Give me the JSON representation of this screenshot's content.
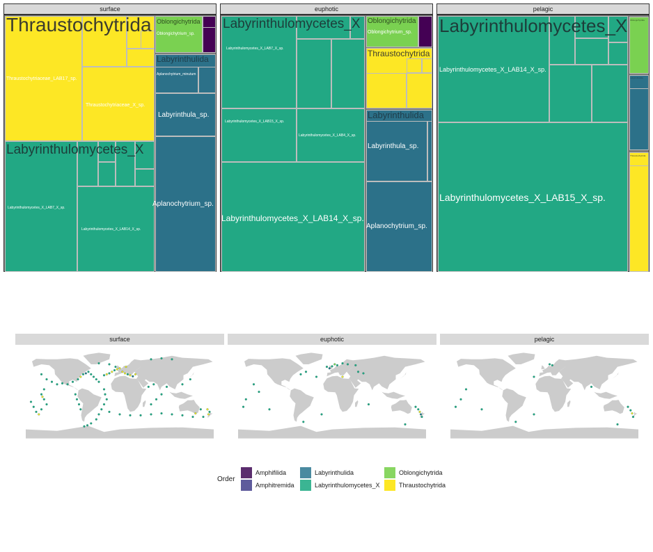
{
  "colors": {
    "Amphifilida": "#5b2d6e",
    "Amphitremida": "#5e5b9c",
    "Labyrinthulida": "#2c7189",
    "Labyrinthulomycetes_X": "#22a884",
    "Oblongichytrida": "#7ad151",
    "Thraustochytrida": "#fde725",
    "dark": "#440154",
    "land": "#cccccc"
  },
  "chart_data": [
    {
      "type": "treemap",
      "facets": [
        "surface",
        "euphotic",
        "pelagic"
      ],
      "groups": {
        "surface": [
          {
            "order": "Thraustochytrida",
            "label": "Thraustochytrida",
            "share": 0.37,
            "taxa": [
              {
                "label": "Thraustochytriaceae_LAB17_sp."
              },
              {
                "label": "Thraustochytriaceae_X_sp."
              }
            ]
          },
          {
            "order": "Labyrinthulomycetes_X",
            "label": "Labyrinthulomycetes_X",
            "share": 0.34,
            "taxa": [
              {
                "label": "Labyrinthulomycetes_X_LAB7_X_sp."
              },
              {
                "label": "Labyrinthulomycetes_X_LAB14_X_sp."
              }
            ]
          },
          {
            "order": "Oblongichytrida",
            "label": "Oblongichytrida",
            "share": 0.04,
            "taxa": [
              {
                "label": "Oblongichytrium_sp."
              }
            ]
          },
          {
            "order": "Labyrinthulida",
            "label": "Labyrinthulida",
            "share": 0.24,
            "taxa": [
              {
                "label": "Aplanochytrium_minutum"
              },
              {
                "label": "Labyrinthula_sp."
              },
              {
                "label": "Aplanochytrium_sp."
              }
            ]
          }
        ],
        "euphotic": [
          {
            "order": "Labyrinthulomycetes_X",
            "label": "Labyrinthulomycetes_X",
            "share": 0.64,
            "taxa": [
              {
                "label": "Labyrinthulomycetes_X_LAB7_X_sp."
              },
              {
                "label": "Labyrinthulomycetes_X_LAB15_X_sp."
              },
              {
                "label": "Labyrinthulomycetes_X_LAB4_X_sp."
              },
              {
                "label": "Labyrinthulomycetes_X_LAB14_X_sp."
              }
            ]
          },
          {
            "order": "Oblongichytrida",
            "label": "Oblongichytrida",
            "share": 0.05,
            "taxa": [
              {
                "label": "Oblongichytrium_sp."
              }
            ]
          },
          {
            "order": "Thraustochytrida",
            "label": "Thraustochytrida",
            "share": 0.1,
            "taxa": []
          },
          {
            "order": "Labyrinthulida",
            "label": "Labyrinthulida",
            "share": 0.21,
            "taxa": [
              {
                "label": "Labyrinthula_sp."
              },
              {
                "label": "Aplanochytrium_sp."
              }
            ]
          }
        ],
        "pelagic": [
          {
            "order": "Labyrinthulomycetes_X",
            "label": "Labyrinthulomycetes_X",
            "share": 0.9,
            "taxa": [
              {
                "label": "Labyrinthulomycetes_X_LAB14_X_sp."
              },
              {
                "label": "Labyrinthulomycetes_X_LAB15_X_sp."
              }
            ]
          },
          {
            "order": "Oblongichytrida",
            "label": "Oblongichytrida",
            "share": 0.02,
            "taxa": []
          },
          {
            "order": "Labyrinthulida",
            "label": "Labyrinthulida",
            "share": 0.03,
            "taxa": []
          },
          {
            "order": "Thraustochytrida",
            "label": "Thraustochytrida",
            "share": 0.05,
            "taxa": []
          }
        ]
      }
    },
    {
      "type": "scatter",
      "facets": [
        "surface",
        "euphotic",
        "pelagic"
      ],
      "xlim": [
        -180,
        180
      ],
      "ylim": [
        -90,
        90
      ],
      "points": {
        "surface": [
          [
            -150,
            40,
            "Labyrinthulomycetes_X"
          ],
          [
            -140,
            30,
            "Labyrinthulomycetes_X"
          ],
          [
            -130,
            25,
            "Labyrinthulomycetes_X"
          ],
          [
            -145,
            10,
            "Labyrinthulomycetes_X"
          ],
          [
            -150,
            0,
            "Labyrinthulomycetes_X"
          ],
          [
            -145,
            -10,
            "Labyrinthulomycetes_X"
          ],
          [
            -140,
            -20,
            "Labyrinthulomycetes_X"
          ],
          [
            -150,
            -30,
            "Labyrinthulomycetes_X"
          ],
          [
            -155,
            -40,
            "Thraustochytrida"
          ],
          [
            -148,
            -5,
            "Thraustochytrida"
          ],
          [
            -120,
            20,
            "Labyrinthulomycetes_X"
          ],
          [
            -110,
            22,
            "Labyrinthulomycetes_X"
          ],
          [
            -100,
            20,
            "Labyrinthulomycetes_X"
          ],
          [
            -90,
            25,
            "Labyrinthulomycetes_X"
          ],
          [
            -80,
            30,
            "Labyrinthulomycetes_X"
          ],
          [
            -75,
            35,
            "Thraustochytrida"
          ],
          [
            -70,
            40,
            "Labyrinthulomycetes_X"
          ],
          [
            -65,
            42,
            "Labyrinthulida"
          ],
          [
            -60,
            45,
            "Labyrinthulomycetes_X"
          ],
          [
            -55,
            40,
            "Labyrinthulomycetes_X"
          ],
          [
            -50,
            35,
            "Labyrinthulomycetes_X"
          ],
          [
            -45,
            30,
            "Labyrinthulomycetes_X"
          ],
          [
            -40,
            25,
            "Labyrinthulomycetes_X"
          ],
          [
            -30,
            38,
            "Labyrinthulomycetes_X"
          ],
          [
            -25,
            40,
            "Thraustochytrida"
          ],
          [
            -20,
            42,
            "Labyrinthulomycetes_X"
          ],
          [
            -15,
            45,
            "Thraustochytrida"
          ],
          [
            -10,
            48,
            "Labyrinthulomycetes_X"
          ],
          [
            -5,
            50,
            "Thraustochytrida"
          ],
          [
            0,
            52,
            "Thraustochytrida"
          ],
          [
            5,
            45,
            "Thraustochytrida"
          ],
          [
            10,
            42,
            "Thraustochytrida"
          ],
          [
            15,
            40,
            "Labyrinthulomycetes_X"
          ],
          [
            20,
            38,
            "Thraustochytrida"
          ],
          [
            25,
            36,
            "Labyrinthulida"
          ],
          [
            30,
            40,
            "Thraustochytrida"
          ],
          [
            12,
            55,
            "Thraustochytrida"
          ],
          [
            -8,
            55,
            "Labyrinthulomycetes_X"
          ],
          [
            -20,
            60,
            "Labyrinthulomycetes_X"
          ],
          [
            -40,
            62,
            "Labyrinthulomycetes_X"
          ],
          [
            60,
            70,
            "Labyrinthulomycetes_X"
          ],
          [
            80,
            72,
            "Labyrinthulomycetes_X"
          ],
          [
            100,
            70,
            "Labyrinthulomycetes_X"
          ],
          [
            -30,
            10,
            "Labyrinthulomycetes_X"
          ],
          [
            -28,
            0,
            "Labyrinthulomycetes_X"
          ],
          [
            -25,
            -10,
            "Labyrinthulomycetes_X"
          ],
          [
            -30,
            -20,
            "Labyrinthulomycetes_X"
          ],
          [
            -35,
            -30,
            "Labyrinthulomycetes_X"
          ],
          [
            -40,
            -40,
            "Labyrinthulomycetes_X"
          ],
          [
            -45,
            -50,
            "Labyrinthulomycetes_X"
          ],
          [
            -55,
            -58,
            "Labyrinthulomycetes_X"
          ],
          [
            -62,
            -62,
            "Labyrinthulomycetes_X"
          ],
          [
            -68,
            -64,
            "Labyrinthulomycetes_X"
          ],
          [
            -20,
            -35,
            "Labyrinthulomycetes_X"
          ],
          [
            0,
            -40,
            "Labyrinthulomycetes_X"
          ],
          [
            20,
            -42,
            "Labyrinthulomycetes_X"
          ],
          [
            40,
            -42,
            "Labyrinthulomycetes_X"
          ],
          [
            60,
            -40,
            "Labyrinthulomycetes_X"
          ],
          [
            80,
            -38,
            "Labyrinthulomycetes_X"
          ],
          [
            100,
            -40,
            "Labyrinthulomycetes_X"
          ],
          [
            120,
            -42,
            "Labyrinthulomycetes_X"
          ],
          [
            140,
            -45,
            "Labyrinthulomycetes_X"
          ],
          [
            160,
            -45,
            "Labyrinthulomycetes_X"
          ],
          [
            170,
            -40,
            "Thraustochytrida"
          ],
          [
            172,
            -35,
            "Labyrinthulomycetes_X"
          ],
          [
            168,
            -30,
            "Thraustochytrida"
          ],
          [
            155,
            -30,
            "Labyrinthulomycetes_X"
          ],
          [
            145,
            -38,
            "Thraustochytrida"
          ],
          [
            60,
            -20,
            "Labyrinthulomycetes_X"
          ],
          [
            70,
            -10,
            "Labyrinthulomycetes_X"
          ],
          [
            80,
            0,
            "Labyrinthulomycetes_X"
          ],
          [
            55,
            15,
            "Labyrinthulomycetes_X"
          ],
          [
            65,
            20,
            "Labyrinthulomycetes_X"
          ],
          [
            90,
            15,
            "Labyrinthulomycetes_X"
          ],
          [
            120,
            20,
            "Labyrinthulomycetes_X"
          ],
          [
            135,
            30,
            "Labyrinthulomycetes_X"
          ],
          [
            -85,
            0,
            "Labyrinthulomycetes_X"
          ],
          [
            -82,
            -10,
            "Labyrinthulomycetes_X"
          ],
          [
            -78,
            -20,
            "Labyrinthulomycetes_X"
          ],
          [
            -75,
            -30,
            "Labyrinthulomycetes_X"
          ],
          [
            -170,
            -15,
            "Labyrinthulomycetes_X"
          ],
          [
            -165,
            -25,
            "Labyrinthulomycetes_X"
          ],
          [
            -160,
            -35,
            "Labyrinthulomycetes_X"
          ]
        ],
        "euphotic": [
          [
            -170,
            -25,
            "Labyrinthulomycetes_X"
          ],
          [
            -165,
            -10,
            "Labyrinthulomycetes_X"
          ],
          [
            -150,
            20,
            "Labyrinthulomycetes_X"
          ],
          [
            -140,
            5,
            "Labyrinthulomycetes_X"
          ],
          [
            -120,
            -30,
            "Labyrinthulomycetes_X"
          ],
          [
            -60,
            40,
            "Labyrinthulomycetes_X"
          ],
          [
            -50,
            45,
            "Labyrinthulomycetes_X"
          ],
          [
            -10,
            55,
            "Labyrinthulomycetes_X"
          ],
          [
            -5,
            52,
            "Labyrinthulida"
          ],
          [
            0,
            56,
            "Labyrinthulomycetes_X"
          ],
          [
            5,
            60,
            "Oblongichytrida"
          ],
          [
            10,
            58,
            "Labyrinthulomycetes_X"
          ],
          [
            20,
            62,
            "Labyrinthulomycetes_X"
          ],
          [
            30,
            60,
            "Labyrinthulomycetes_X"
          ],
          [
            45,
            58,
            "Labyrinthulomycetes_X"
          ],
          [
            50,
            45,
            "Labyrinthulomycetes_X"
          ],
          [
            60,
            42,
            "Labyrinthulomycetes_X"
          ],
          [
            -30,
            35,
            "Labyrinthulomycetes_X"
          ],
          [
            20,
            35,
            "Thraustochytrida"
          ],
          [
            -55,
            -55,
            "Labyrinthulomycetes_X"
          ],
          [
            -20,
            -40,
            "Labyrinthulomycetes_X"
          ],
          [
            160,
            -25,
            "Labyrinthulomycetes_X"
          ],
          [
            165,
            -30,
            "Labyrinthulomycetes_X"
          ],
          [
            168,
            -35,
            "Thraustochytrida"
          ],
          [
            170,
            -40,
            "Labyrinthulida"
          ],
          [
            172,
            -45,
            "Labyrinthulomycetes_X"
          ],
          [
            140,
            -60,
            "Labyrinthulomycetes_X"
          ],
          [
            70,
            -20,
            "Labyrinthulomycetes_X"
          ]
        ],
        "pelagic": [
          [
            -170,
            -25,
            "Labyrinthulomycetes_X"
          ],
          [
            -160,
            -10,
            "Labyrinthulomycetes_X"
          ],
          [
            -150,
            10,
            "Labyrinthulomycetes_X"
          ],
          [
            -120,
            -30,
            "Labyrinthulomycetes_X"
          ],
          [
            10,
            60,
            "Labyrinthulomycetes_X"
          ],
          [
            15,
            58,
            "Labyrinthulomycetes_X"
          ],
          [
            -20,
            35,
            "Labyrinthulomycetes_X"
          ],
          [
            -55,
            -55,
            "Labyrinthulomycetes_X"
          ],
          [
            -20,
            -40,
            "Labyrinthulomycetes_X"
          ],
          [
            90,
            15,
            "Labyrinthulomycetes_X"
          ],
          [
            160,
            -25,
            "Labyrinthulomycetes_X"
          ],
          [
            165,
            -32,
            "Labyrinthulomycetes_X"
          ],
          [
            168,
            -38,
            "Thraustochytrida"
          ],
          [
            170,
            -45,
            "Labyrinthulomycetes_X"
          ],
          [
            140,
            -60,
            "Labyrinthulomycetes_X"
          ]
        ]
      }
    }
  ],
  "legend": {
    "title": "Order",
    "items": [
      {
        "label": "Amphifilida",
        "color": "#5b2d6e"
      },
      {
        "label": "Amphitremida",
        "color": "#5e5b9c"
      },
      {
        "label": "Labyrinthulida",
        "color": "#4a8aa0"
      },
      {
        "label": "Labyrinthulomycetes_X",
        "color": "#3bb593"
      },
      {
        "label": "Oblongichytrida",
        "color": "#88d661"
      },
      {
        "label": "Thraustochytrida",
        "color": "#fde725"
      }
    ]
  }
}
